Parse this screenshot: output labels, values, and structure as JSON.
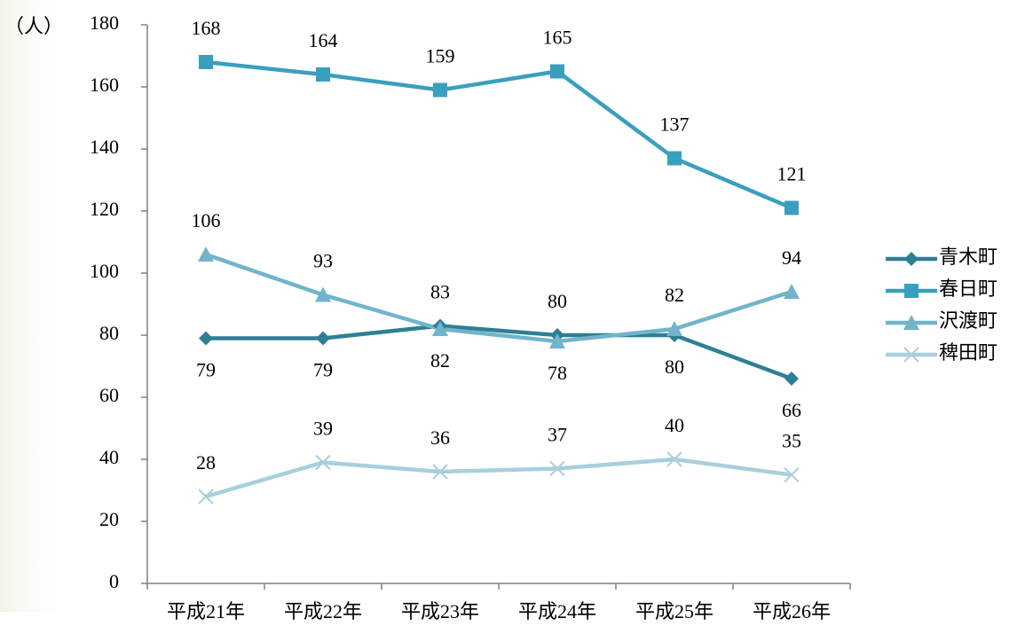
{
  "chart_data": {
    "type": "line",
    "y_unit": "（人）",
    "categories": [
      "平成21年",
      "平成22年",
      "平成23年",
      "平成24年",
      "平成25年",
      "平成26年"
    ],
    "series": [
      {
        "name": "青木町",
        "color": "#2e7f95",
        "marker": "diamond",
        "values": [
          79,
          79,
          83,
          80,
          80,
          66
        ]
      },
      {
        "name": "春日町",
        "color": "#3a9fbf",
        "marker": "square",
        "values": [
          168,
          164,
          159,
          165,
          137,
          121
        ]
      },
      {
        "name": "沢渡町",
        "color": "#71b4cb",
        "marker": "triangle",
        "values": [
          106,
          93,
          82,
          78,
          82,
          94
        ]
      },
      {
        "name": "稗田町",
        "color": "#a8cfdc",
        "marker": "x",
        "values": [
          28,
          39,
          36,
          37,
          40,
          35
        ]
      }
    ],
    "ylim": [
      0,
      180
    ],
    "yticks": [
      0,
      20,
      40,
      60,
      80,
      100,
      120,
      140,
      160,
      180
    ],
    "legend": "right",
    "data_labels": true
  }
}
